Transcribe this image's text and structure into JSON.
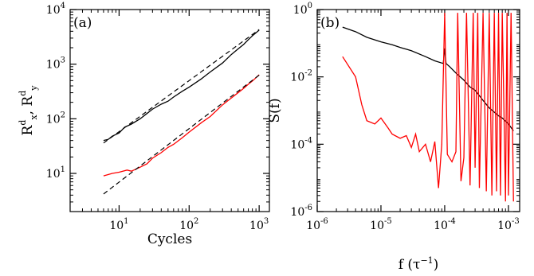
{
  "chart_data": [
    {
      "panel": "(a)",
      "type": "line",
      "xscale": "log",
      "yscale": "log",
      "xlim": [
        2,
        1400
      ],
      "ylim": [
        2,
        10000
      ],
      "xticks": [
        {
          "v": 10,
          "base": "10",
          "exp": "1"
        },
        {
          "v": 100,
          "base": "10",
          "exp": "2"
        },
        {
          "v": 1000,
          "base": "10",
          "exp": "3"
        }
      ],
      "yticks": [
        {
          "v": 10,
          "base": "10",
          "exp": "1"
        },
        {
          "v": 100,
          "base": "10",
          "exp": "2"
        },
        {
          "v": 1000,
          "base": "10",
          "exp": "3"
        },
        {
          "v": 10000,
          "base": "10",
          "exp": "4"
        }
      ],
      "xlabel": "Cycles",
      "ylabel": {
        "main1": "R",
        "sup1": "d",
        "sub1": "x",
        "sep": ", R",
        "sup2": "d",
        "sub2": "y"
      },
      "series": [
        {
          "color": "#000000",
          "style": "solid",
          "x": [
            6,
            7,
            8,
            10,
            12,
            15,
            20,
            25,
            30,
            40,
            50,
            60,
            80,
            100,
            150,
            200,
            300,
            400,
            500,
            600,
            700,
            800,
            1000
          ],
          "y": [
            40,
            42,
            48,
            55,
            70,
            80,
            100,
            125,
            150,
            185,
            210,
            250,
            320,
            380,
            540,
            720,
            1050,
            1500,
            1900,
            2300,
            2800,
            3300,
            4200
          ]
        },
        {
          "color": "#000000",
          "style": "dashed",
          "x": [
            6,
            1000
          ],
          "y": [
            36,
            4300
          ]
        },
        {
          "color": "#ff0000",
          "style": "solid",
          "x": [
            6,
            8,
            10,
            13,
            15,
            20,
            25,
            30,
            40,
            50,
            60,
            80,
            100,
            150,
            200,
            300,
            400,
            500,
            600,
            700,
            800,
            1000
          ],
          "y": [
            9,
            10,
            10.5,
            11.5,
            11,
            13,
            15,
            19,
            24,
            30,
            34,
            45,
            57,
            85,
            110,
            180,
            240,
            300,
            360,
            430,
            490,
            640
          ]
        },
        {
          "color": "#000000",
          "style": "dashed",
          "x": [
            6,
            1000
          ],
          "y": [
            4.2,
            630
          ]
        }
      ]
    },
    {
      "panel": "(b)",
      "type": "line",
      "xscale": "log",
      "yscale": "log",
      "xlim": [
        1e-06,
        0.0015
      ],
      "ylim": [
        1e-06,
        1
      ],
      "xticks": [
        {
          "v": 1e-06,
          "base": "10",
          "exp": "-6"
        },
        {
          "v": 1e-05,
          "base": "10",
          "exp": "-5"
        },
        {
          "v": 0.0001,
          "base": "10",
          "exp": "-4"
        },
        {
          "v": 0.001,
          "base": "10",
          "exp": "-3"
        }
      ],
      "yticks": [
        {
          "v": 1e-06,
          "base": "10",
          "exp": "-6"
        },
        {
          "v": 0.0001,
          "base": "10",
          "exp": "-4"
        },
        {
          "v": 0.01,
          "base": "10",
          "exp": "-2"
        },
        {
          "v": 1,
          "base": "10",
          "exp": "0"
        }
      ],
      "xlabel": {
        "main": "f (τ",
        "sup": "−1",
        "tail": ")"
      },
      "ylabel": "S(f)",
      "series": [
        {
          "color": "#000000",
          "style": "solid",
          "x": [
            2.5e-06,
            4e-06,
            6e-06,
            1e-05,
            1.5e-05,
            2e-05,
            3e-05,
            5e-05,
            7e-05,
            9.5e-05,
            0.0001,
            0.000105,
            0.00012,
            0.00015,
            0.0002,
            0.00025,
            0.0003,
            0.0004,
            0.0005,
            0.0006,
            0.0007,
            0.0008,
            0.001,
            0.0012
          ],
          "y": [
            0.3,
            0.22,
            0.15,
            0.11,
            0.09,
            0.075,
            0.06,
            0.04,
            0.03,
            0.025,
            0.07,
            0.025,
            0.02,
            0.013,
            0.008,
            0.005,
            0.004,
            0.002,
            0.0012,
            0.0009,
            0.0007,
            0.0006,
            0.0004,
            0.00025
          ]
        },
        {
          "color": "#ff0000",
          "style": "solid",
          "x": [
            2.5e-06,
            4e-06,
            5e-06,
            6e-06,
            8e-06,
            1e-05,
            1.3e-05,
            1.5e-05,
            2e-05,
            2.5e-05,
            3e-05,
            3.5e-05,
            4e-05,
            5e-05,
            6e-05,
            7e-05,
            8e-05,
            9e-05,
            0.0001,
            0.00011,
            0.00013,
            0.00015,
            0.00016,
            0.00018,
            0.0002,
            0.00022,
            0.00025,
            0.00028,
            0.0003,
            0.00033,
            0.00035,
            0.0004,
            0.00045,
            0.0005,
            0.00055,
            0.0006,
            0.00065,
            0.0007,
            0.00075,
            0.0008,
            0.0009,
            0.00095,
            0.001,
            0.0011,
            0.0012
          ],
          "y": [
            0.04,
            0.01,
            0.0015,
            0.0005,
            0.0004,
            0.0006,
            0.0003,
            0.0002,
            0.00015,
            0.00018,
            8e-05,
            0.0002,
            6e-05,
            0.0001,
            3e-05,
            0.00012,
            5e-06,
            0.0001,
            0.8,
            5e-05,
            3e-05,
            6e-05,
            0.8,
            8e-06,
            4e-05,
            0.8,
            6e-06,
            0.8,
            2e-05,
            0.8,
            5e-06,
            0.8,
            4e-06,
            0.8,
            3e-06,
            0.8,
            4e-06,
            0.8,
            3e-06,
            0.8,
            2e-06,
            0.8,
            3e-06,
            0.8,
            2e-06
          ]
        }
      ]
    }
  ]
}
